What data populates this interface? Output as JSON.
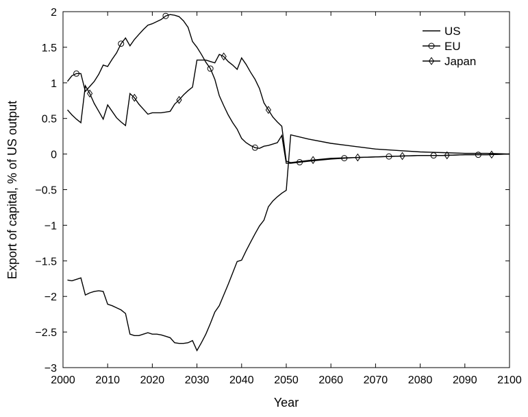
{
  "chart_data": {
    "type": "line",
    "title": "",
    "xlabel": "Year",
    "ylabel": "Export of capital, % of US output",
    "xlim": [
      2000,
      2100
    ],
    "ylim": [
      -3,
      2
    ],
    "xticks": [
      2000,
      2010,
      2020,
      2030,
      2040,
      2050,
      2060,
      2070,
      2080,
      2090,
      2100
    ],
    "yticks": [
      -3,
      -2.5,
      -2,
      -1.5,
      -1,
      -0.5,
      0,
      0.5,
      1,
      1.5,
      2
    ],
    "grid": false,
    "legend_position": "top-right",
    "series": [
      {
        "name": "US",
        "marker": "none",
        "x": [
          2001,
          2002,
          2003,
          2004,
          2005,
          2006,
          2007,
          2008,
          2009,
          2010,
          2011,
          2012,
          2013,
          2014,
          2015,
          2016,
          2017,
          2018,
          2019,
          2020,
          2021,
          2022,
          2023,
          2024,
          2025,
          2026,
          2027,
          2028,
          2029,
          2030,
          2031,
          2032,
          2033,
          2034,
          2035,
          2036,
          2037,
          2038,
          2039,
          2040,
          2041,
          2042,
          2043,
          2044,
          2045,
          2046,
          2047,
          2048,
          2049,
          2050,
          2051,
          2055,
          2060,
          2065,
          2070,
          2075,
          2080,
          2085,
          2090,
          2095,
          2100
        ],
        "y": [
          -1.77,
          -1.78,
          -1.76,
          -1.74,
          -1.98,
          -1.95,
          -1.93,
          -1.92,
          -1.93,
          -2.11,
          -2.13,
          -2.16,
          -2.19,
          -2.24,
          -2.53,
          -2.55,
          -2.55,
          -2.53,
          -2.51,
          -2.53,
          -2.53,
          -2.54,
          -2.56,
          -2.58,
          -2.65,
          -2.66,
          -2.66,
          -2.65,
          -2.62,
          -2.76,
          -2.65,
          -2.53,
          -2.38,
          -2.22,
          -2.13,
          -1.98,
          -1.83,
          -1.67,
          -1.51,
          -1.49,
          -1.36,
          -1.24,
          -1.12,
          -1.01,
          -0.93,
          -0.74,
          -0.66,
          -0.6,
          -0.55,
          -0.51,
          0.27,
          0.21,
          0.15,
          0.11,
          0.07,
          0.05,
          0.03,
          0.02,
          0.01,
          0.01,
          0.0
        ]
      },
      {
        "name": "EU",
        "marker": "circle",
        "x": [
          2001,
          2002,
          2003,
          2004,
          2005,
          2006,
          2007,
          2008,
          2009,
          2010,
          2011,
          2012,
          2013,
          2014,
          2015,
          2016,
          2017,
          2018,
          2019,
          2020,
          2021,
          2022,
          2023,
          2024,
          2025,
          2026,
          2027,
          2028,
          2029,
          2030,
          2031,
          2032,
          2033,
          2034,
          2035,
          2036,
          2037,
          2038,
          2039,
          2040,
          2041,
          2042,
          2043,
          2044,
          2045,
          2046,
          2047,
          2048,
          2049,
          2050,
          2051,
          2055,
          2060,
          2065,
          2070,
          2075,
          2080,
          2085,
          2090,
          2095,
          2100
        ],
        "y": [
          1.02,
          1.1,
          1.13,
          1.13,
          0.88,
          0.95,
          1.02,
          1.12,
          1.25,
          1.23,
          1.33,
          1.42,
          1.55,
          1.63,
          1.52,
          1.61,
          1.68,
          1.75,
          1.81,
          1.83,
          1.86,
          1.89,
          1.94,
          1.96,
          1.95,
          1.93,
          1.87,
          1.78,
          1.58,
          1.5,
          1.4,
          1.29,
          1.2,
          1.05,
          0.82,
          0.68,
          0.55,
          0.44,
          0.35,
          0.22,
          0.16,
          0.12,
          0.09,
          0.08,
          0.11,
          0.12,
          0.14,
          0.16,
          0.26,
          -0.13,
          -0.13,
          -0.1,
          -0.07,
          -0.05,
          -0.04,
          -0.03,
          -0.02,
          -0.02,
          -0.01,
          -0.01,
          0.0
        ]
      },
      {
        "name": "Japan",
        "marker": "diamond",
        "x": [
          2001,
          2002,
          2003,
          2004,
          2005,
          2006,
          2007,
          2008,
          2009,
          2010,
          2011,
          2012,
          2013,
          2014,
          2015,
          2016,
          2017,
          2018,
          2019,
          2020,
          2021,
          2022,
          2023,
          2024,
          2025,
          2026,
          2027,
          2028,
          2029,
          2030,
          2031,
          2032,
          2033,
          2034,
          2035,
          2036,
          2037,
          2038,
          2039,
          2040,
          2041,
          2042,
          2043,
          2044,
          2045,
          2046,
          2047,
          2048,
          2049,
          2050,
          2051,
          2055,
          2060,
          2065,
          2070,
          2075,
          2080,
          2085,
          2090,
          2095,
          2100
        ],
        "y": [
          0.62,
          0.55,
          0.49,
          0.44,
          0.96,
          0.85,
          0.71,
          0.6,
          0.49,
          0.69,
          0.6,
          0.51,
          0.45,
          0.4,
          0.85,
          0.79,
          0.7,
          0.63,
          0.56,
          0.58,
          0.58,
          0.58,
          0.59,
          0.6,
          0.7,
          0.76,
          0.83,
          0.89,
          0.94,
          1.32,
          1.32,
          1.32,
          1.3,
          1.28,
          1.4,
          1.37,
          1.3,
          1.25,
          1.19,
          1.35,
          1.26,
          1.15,
          1.05,
          0.92,
          0.72,
          0.62,
          0.52,
          0.45,
          0.39,
          -0.1,
          -0.12,
          -0.09,
          -0.06,
          -0.05,
          -0.04,
          -0.03,
          -0.02,
          -0.02,
          -0.01,
          -0.01,
          0.0
        ]
      }
    ]
  }
}
